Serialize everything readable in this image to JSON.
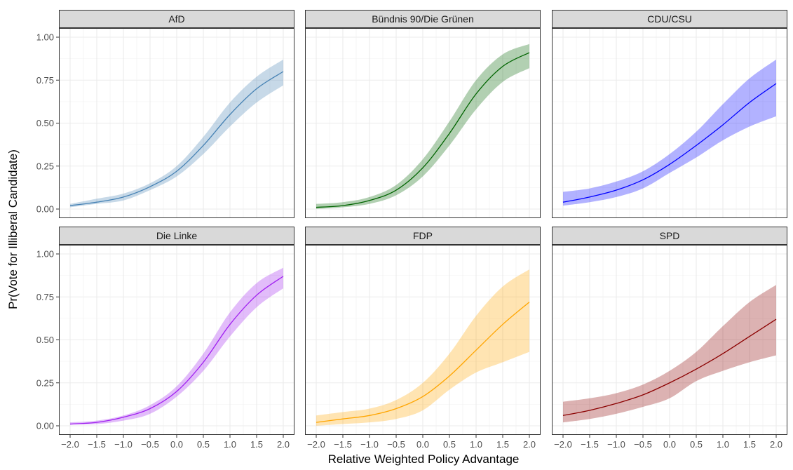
{
  "chart_data": {
    "type": "line",
    "layout": "facet-grid-2x3",
    "xlabel": "Relative Weighted Policy Advantage",
    "ylabel": "Pr(Vote for Illiberal Candidate)",
    "xlim": [
      -2.0,
      2.0
    ],
    "ylim": [
      0.0,
      1.0
    ],
    "grid": true,
    "x_ticks": [
      "-2.0",
      "-1.5",
      "-1.0",
      "-0.5",
      "0.0",
      "0.5",
      "1.0",
      "1.5",
      "2.0"
    ],
    "y_ticks": [
      "0.00",
      "0.25",
      "0.50",
      "0.75",
      "1.00"
    ],
    "x": [
      -2.0,
      -1.5,
      -1.0,
      -0.5,
      0.0,
      0.5,
      1.0,
      1.5,
      2.0
    ],
    "panels": [
      {
        "name": "AfD",
        "color": "#4682b4",
        "y": [
          0.02,
          0.04,
          0.07,
          0.13,
          0.22,
          0.37,
          0.55,
          0.7,
          0.8
        ],
        "lower": [
          0.01,
          0.03,
          0.05,
          0.11,
          0.19,
          0.32,
          0.48,
          0.62,
          0.72
        ],
        "upper": [
          0.03,
          0.06,
          0.09,
          0.15,
          0.25,
          0.42,
          0.62,
          0.77,
          0.87
        ]
      },
      {
        "name": "Bündnis 90/Die Grünen",
        "color": "#006400",
        "y": [
          0.01,
          0.02,
          0.05,
          0.11,
          0.24,
          0.44,
          0.67,
          0.83,
          0.91
        ],
        "lower": [
          0.0,
          0.01,
          0.03,
          0.08,
          0.19,
          0.37,
          0.58,
          0.74,
          0.82
        ],
        "upper": [
          0.03,
          0.04,
          0.07,
          0.14,
          0.29,
          0.51,
          0.75,
          0.9,
          0.96
        ]
      },
      {
        "name": "CDU/CSU",
        "color": "#0000ff",
        "y": [
          0.04,
          0.07,
          0.11,
          0.17,
          0.26,
          0.37,
          0.49,
          0.62,
          0.73
        ],
        "lower": [
          0.02,
          0.04,
          0.07,
          0.12,
          0.21,
          0.3,
          0.4,
          0.48,
          0.54
        ],
        "upper": [
          0.1,
          0.12,
          0.16,
          0.22,
          0.32,
          0.45,
          0.61,
          0.76,
          0.87
        ]
      },
      {
        "name": "Die Linke",
        "color": "#a020f0",
        "y": [
          0.01,
          0.02,
          0.05,
          0.1,
          0.2,
          0.37,
          0.59,
          0.76,
          0.87
        ],
        "lower": [
          0.01,
          0.01,
          0.03,
          0.07,
          0.17,
          0.32,
          0.52,
          0.69,
          0.8
        ],
        "upper": [
          0.02,
          0.03,
          0.06,
          0.12,
          0.23,
          0.42,
          0.66,
          0.83,
          0.92
        ]
      },
      {
        "name": "FDP",
        "color": "#ffa500",
        "y": [
          0.02,
          0.04,
          0.06,
          0.1,
          0.17,
          0.29,
          0.44,
          0.59,
          0.72
        ],
        "lower": [
          0.0,
          0.01,
          0.02,
          0.04,
          0.09,
          0.21,
          0.31,
          0.37,
          0.43
        ],
        "upper": [
          0.06,
          0.08,
          0.1,
          0.15,
          0.25,
          0.42,
          0.64,
          0.81,
          0.91
        ]
      },
      {
        "name": "SPD",
        "color": "#8b0000",
        "y": [
          0.06,
          0.09,
          0.13,
          0.18,
          0.25,
          0.33,
          0.42,
          0.52,
          0.62
        ],
        "lower": [
          0.02,
          0.04,
          0.07,
          0.11,
          0.16,
          0.26,
          0.32,
          0.37,
          0.41
        ],
        "upper": [
          0.14,
          0.16,
          0.19,
          0.24,
          0.32,
          0.43,
          0.58,
          0.72,
          0.82
        ]
      }
    ]
  }
}
